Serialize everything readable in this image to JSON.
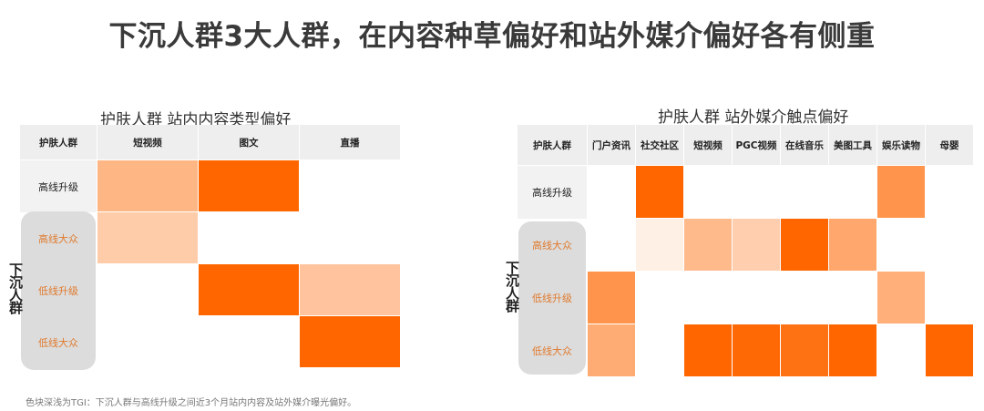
{
  "title": "下沉人群3大人群，在内容种草偏好和站外媒介偏好各有侧重",
  "footnote": "色块深浅为TGI：下沉人群与高线升级之间近3个月站内内容及站外媒介曝光偏好。",
  "colors": {
    "scale_low": "#fff7f1",
    "scale_high": "#ff6600",
    "header_bg": "#eeeeee",
    "row_bg": "#f2f2f2",
    "sink_bg": "#dcdcdc",
    "sink_text": "#e07a2e"
  },
  "chart_data": [
    {
      "type": "heatmap",
      "title": "护肤人群 站内内容类型偏好",
      "corner_label": "护肤人群",
      "columns": [
        "短视频",
        "图文",
        "直播"
      ],
      "rows": [
        "高线升级",
        "高线大众",
        "低线升级",
        "低线大众"
      ],
      "sink_rows": [
        1,
        2,
        3
      ],
      "group_label": "下沉人群",
      "intensity": [
        [
          0.45,
          1.0,
          0
        ],
        [
          0.3,
          0,
          0
        ],
        [
          0,
          1.0,
          0.35
        ],
        [
          0,
          0,
          1.0
        ]
      ]
    },
    {
      "type": "heatmap",
      "title": "护肤人群 站外媒介触点偏好",
      "corner_label": "护肤人群",
      "columns": [
        "门户资讯",
        "社交社区",
        "短视频",
        "PGC视频",
        "在线音乐",
        "美图工具",
        "娱乐读物",
        "母婴"
      ],
      "rows": [
        "高线升级",
        "高线大众",
        "低线升级",
        "低线大众"
      ],
      "sink_rows": [
        1,
        2,
        3
      ],
      "group_label": "下沉人群",
      "intensity": [
        [
          0,
          1.0,
          0,
          0,
          0,
          0,
          0.68,
          0
        ],
        [
          0,
          0.05,
          0.42,
          0.28,
          1.0,
          0.55,
          0,
          0
        ],
        [
          0.68,
          0,
          0,
          0,
          0,
          0,
          0.5,
          0
        ],
        [
          0.52,
          0,
          1.0,
          0.98,
          0.92,
          1.0,
          0,
          1.0
        ]
      ]
    }
  ]
}
